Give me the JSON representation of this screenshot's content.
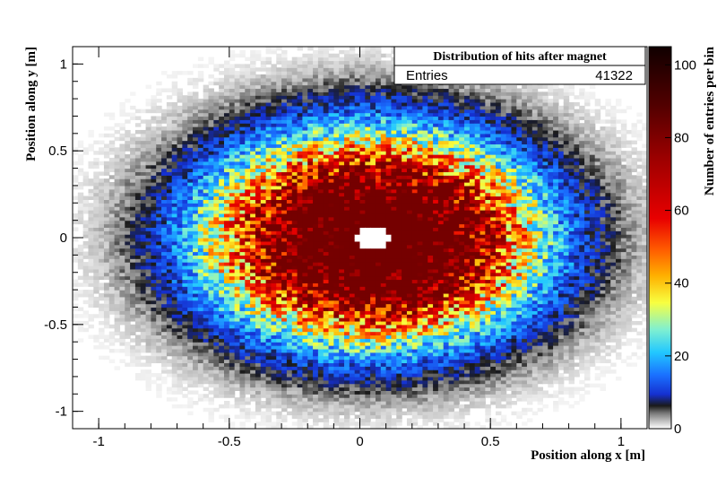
{
  "chart_data": {
    "type": "heatmap",
    "title": "",
    "xlabel": "Position along x [m]",
    "ylabel": "Position along y [m]",
    "zlabel": "Number of entries per bin",
    "xlim": [
      -1.1,
      1.1
    ],
    "ylim": [
      -1.1,
      1.1
    ],
    "zlim": [
      0,
      105
    ],
    "x_ticks": [
      -1,
      -0.5,
      0,
      0.5,
      1
    ],
    "x_tick_labels": [
      "-1",
      "-0.5",
      "0",
      "0.5",
      "1"
    ],
    "y_ticks": [
      -1,
      -0.5,
      0,
      0.5,
      1
    ],
    "y_tick_labels": [
      "-1",
      "-0.5",
      "0",
      "0.5",
      "1"
    ],
    "z_ticks": [
      0,
      20,
      40,
      60,
      80,
      100
    ],
    "z_tick_labels": [
      "0",
      "20",
      "40",
      "60",
      "80",
      "100"
    ],
    "distribution": {
      "shape": "2D Gaussian-like cloud",
      "center": [
        0.05,
        0.0
      ],
      "extent_x": [
        -1.05,
        1.05
      ],
      "extent_y": [
        -1.05,
        1.0
      ],
      "peak_entries_per_bin": 105,
      "core_saturated": true
    },
    "color_scale": [
      "#ffffff",
      "#bfbfbf",
      "#808080",
      "#303030",
      "#000000",
      "#0a1aa0",
      "#1540ff",
      "#1a8cff",
      "#22d4ff",
      "#7ff0e0",
      "#ffff40",
      "#ffb000",
      "#ff5000",
      "#e00000",
      "#a00000",
      "#600000",
      "#200000"
    ],
    "grid": false,
    "legend": "top-right",
    "stats_box": {
      "title": "Distribution of hits after magnet",
      "entries_label": "Entries",
      "entries_value": "41322"
    }
  }
}
